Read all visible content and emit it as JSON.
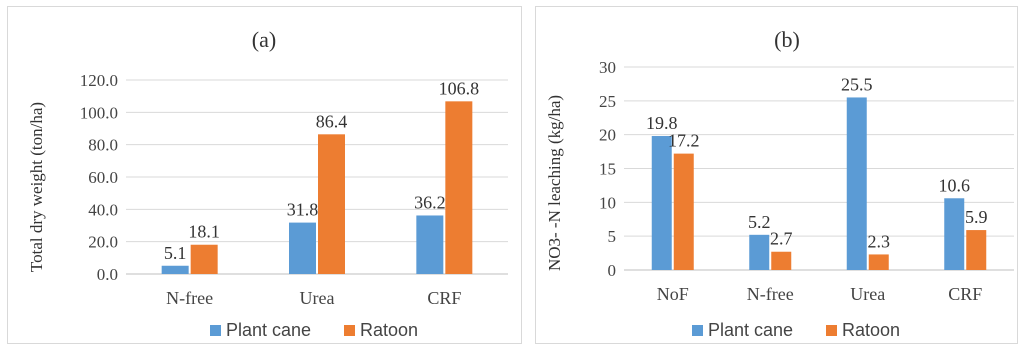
{
  "chart_data": [
    {
      "type": "bar",
      "title": "(a)",
      "xlabel": "",
      "ylabel": "Total dry weight (ton/ha)",
      "ylim": [
        0,
        120
      ],
      "yticks": [
        "0.0",
        "20.0",
        "40.0",
        "60.0",
        "80.0",
        "100.0",
        "120.0"
      ],
      "categories": [
        "N-free",
        "Urea",
        "CRF"
      ],
      "series": [
        {
          "name": "Plant cane",
          "color": "#5b9bd5",
          "values": [
            5.1,
            31.8,
            36.2
          ],
          "labels": [
            "5.1",
            "31.8",
            "36.2"
          ]
        },
        {
          "name": "Ratoon",
          "color": "#ed7d31",
          "values": [
            18.1,
            86.4,
            106.8
          ],
          "labels": [
            "18.1",
            "86.4",
            "106.8"
          ]
        }
      ],
      "grid": true,
      "legend": "bottom"
    },
    {
      "type": "bar",
      "title": "(b)",
      "xlabel": "",
      "ylabel": "NO3- -N leaching (kg/ha)",
      "ylim": [
        0,
        30
      ],
      "yticks": [
        "0",
        "5",
        "10",
        "15",
        "20",
        "25",
        "30"
      ],
      "categories": [
        "NoF",
        "N-free",
        "Urea",
        "CRF"
      ],
      "series": [
        {
          "name": "Plant cane",
          "color": "#5b9bd5",
          "values": [
            19.8,
            5.2,
            25.5,
            10.6
          ],
          "labels": [
            "19.8",
            "5.2",
            "25.5",
            "10.6"
          ]
        },
        {
          "name": "Ratoon",
          "color": "#ed7d31",
          "values": [
            17.2,
            2.7,
            2.3,
            5.9
          ],
          "labels": [
            "17.2",
            "2.7",
            "2.3",
            "5.9"
          ]
        }
      ],
      "grid": true,
      "legend": "bottom"
    }
  ]
}
